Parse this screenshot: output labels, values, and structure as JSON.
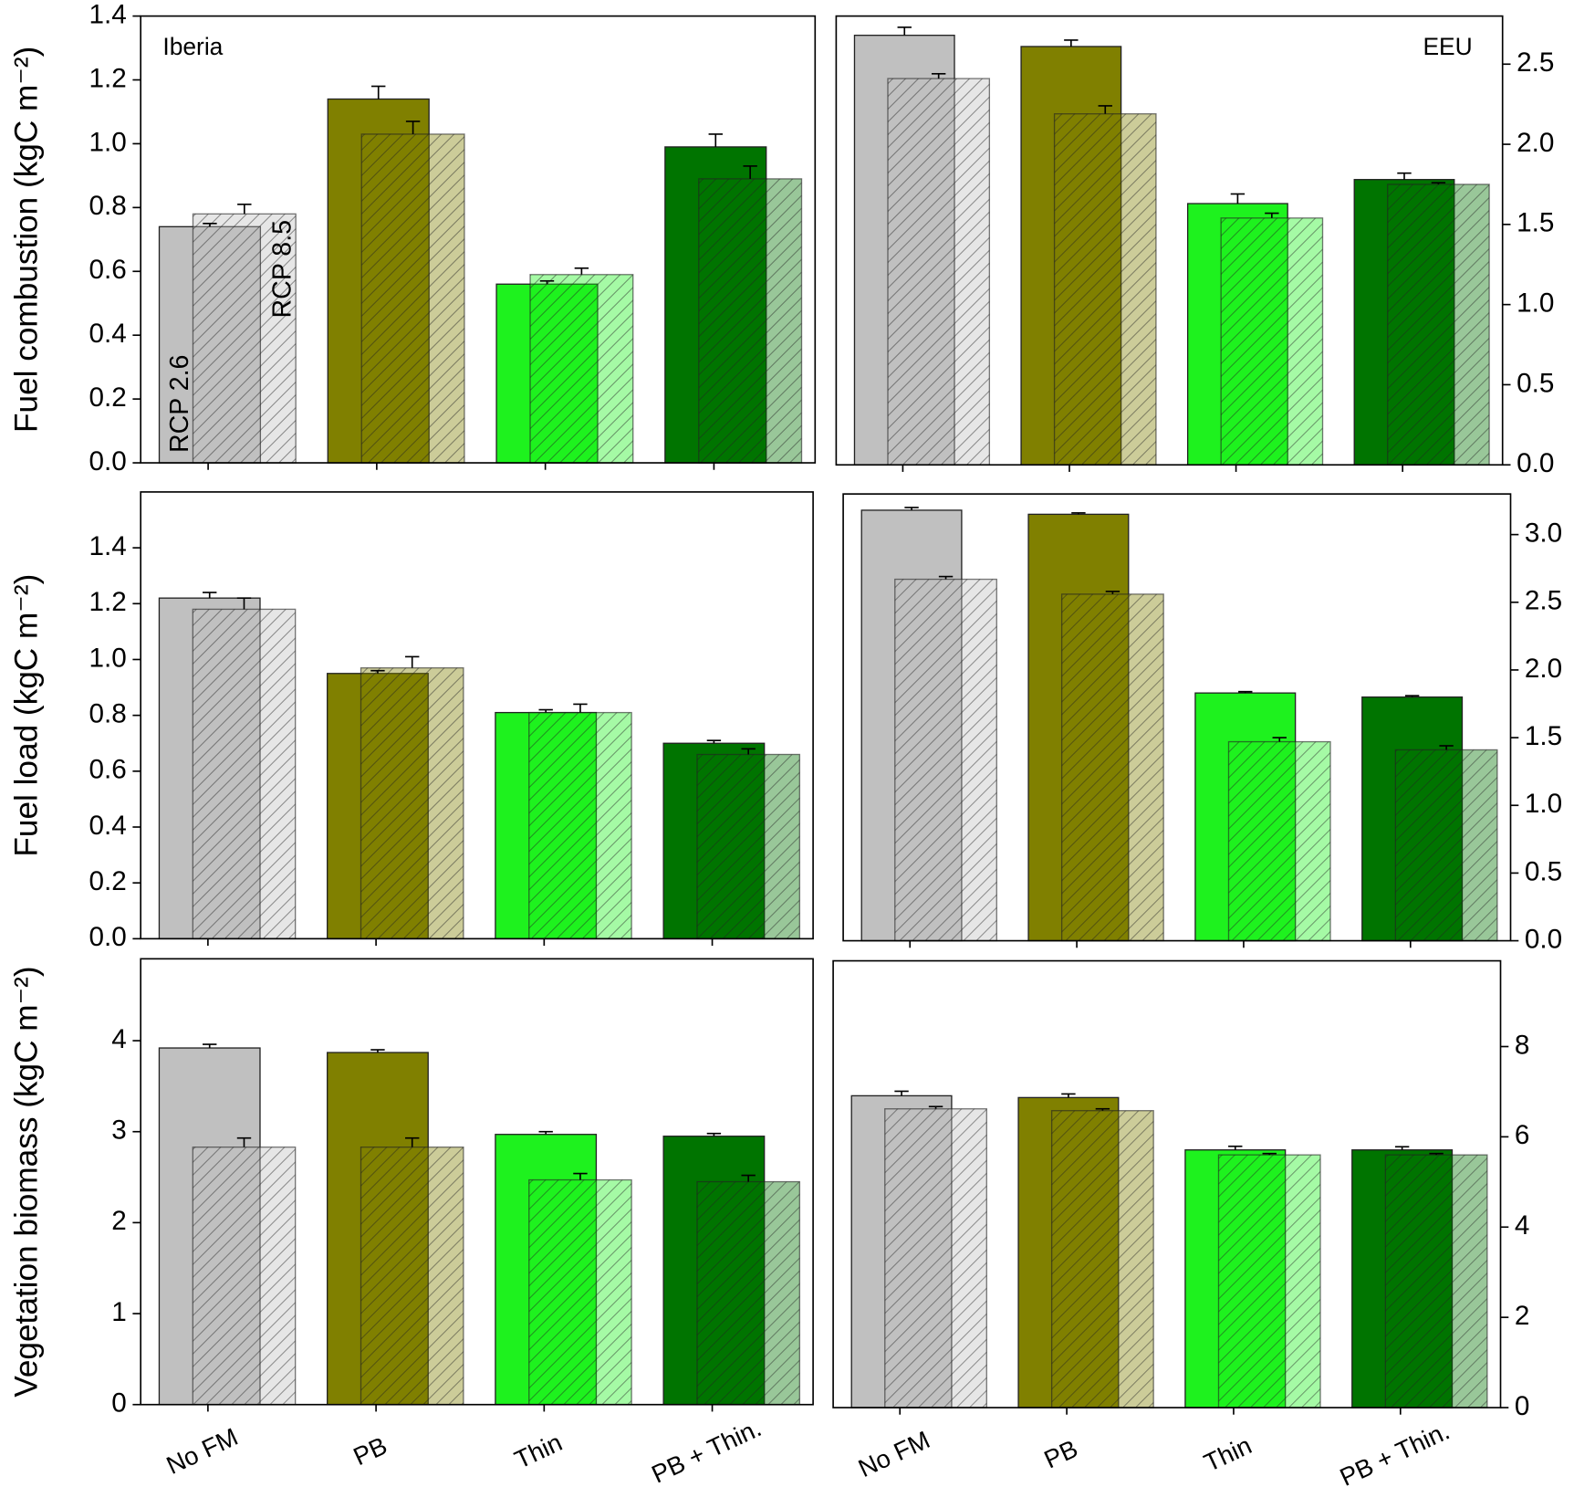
{
  "chart_data": [
    {
      "type": "bar",
      "region": "Iberia",
      "region_position": "left",
      "y_label": "Fuel combustion (kgC m⁻²)",
      "yaxis_position": "left",
      "categories": [
        null,
        null,
        null,
        null
      ],
      "colors": [
        "#c0c0c0",
        "#808000",
        "#1ef21e",
        "#007400"
      ],
      "series": [
        {
          "name": "RCP 2.6",
          "values": [
            0.74,
            1.14,
            0.56,
            0.99
          ],
          "errors": [
            0.01,
            0.04,
            0.01,
            0.04
          ]
        },
        {
          "name": "RCP 8.5",
          "values": [
            0.78,
            1.03,
            0.59,
            0.89
          ],
          "errors": [
            0.03,
            0.04,
            0.02,
            0.04
          ]
        }
      ],
      "ylim": [
        0,
        1.4
      ],
      "yticks": [
        {
          "value": 0,
          "label": "0.0"
        },
        0.2,
        0.4,
        0.6,
        0.8,
        {
          "value": 1,
          "label": "1.0"
        },
        1.2,
        1.4
      ]
    },
    {
      "type": "bar",
      "region": "EEU",
      "region_position": "right",
      "yaxis_position": "right",
      "categories": [
        null,
        null,
        null,
        null
      ],
      "colors": [
        "#c0c0c0",
        "#808000",
        "#1ef21e",
        "#007400"
      ],
      "series": [
        {
          "values": [
            2.68,
            2.61,
            1.63,
            1.78
          ],
          "errors": [
            0.05,
            0.04,
            0.06,
            0.04
          ]
        },
        {
          "values": [
            2.41,
            2.19,
            1.54,
            1.75
          ],
          "errors": [
            0.03,
            0.05,
            0.03,
            0.01
          ]
        }
      ],
      "ylim": [
        0,
        2.8
      ],
      "yticks": [
        {
          "value": 0,
          "label": "0.0"
        },
        0.5,
        {
          "value": 1,
          "label": "1.0"
        },
        1.5,
        {
          "value": 2,
          "label": "2.0"
        },
        2.5
      ]
    },
    {
      "type": "bar",
      "y_label": "Fuel load (kgC m⁻²)",
      "yaxis_position": "left",
      "categories": [
        null,
        null,
        null,
        null
      ],
      "colors": [
        "#c0c0c0",
        "#808000",
        "#1ef21e",
        "#007400"
      ],
      "series": [
        {
          "values": [
            1.22,
            0.95,
            0.81,
            0.7
          ],
          "errors": [
            0.02,
            0.01,
            0.01,
            0.01
          ]
        },
        {
          "values": [
            1.18,
            0.97,
            0.81,
            0.66
          ],
          "errors": [
            0.04,
            0.04,
            0.03,
            0.02
          ]
        }
      ],
      "ylim": [
        0,
        1.6
      ],
      "yticks": [
        {
          "value": 0,
          "label": "0.0"
        },
        0.2,
        0.4,
        0.6,
        0.8,
        {
          "value": 1,
          "label": "1.0"
        },
        1.2,
        1.4
      ]
    },
    {
      "type": "bar",
      "yaxis_position": "right",
      "categories": [
        null,
        null,
        null,
        null
      ],
      "colors": [
        "#c0c0c0",
        "#808000",
        "#1ef21e",
        "#007400"
      ],
      "series": [
        {
          "values": [
            3.18,
            3.15,
            1.83,
            1.8
          ],
          "errors": [
            0.02,
            0.01,
            0.01,
            0.01
          ]
        },
        {
          "values": [
            2.67,
            2.56,
            1.47,
            1.41
          ],
          "errors": [
            0.02,
            0.02,
            0.03,
            0.03
          ]
        }
      ],
      "ylim": [
        0,
        3.3
      ],
      "yticks": [
        {
          "value": 0,
          "label": "0.0"
        },
        0.5,
        {
          "value": 1,
          "label": "1.0"
        },
        1.5,
        {
          "value": 2,
          "label": "2.0"
        },
        2.5,
        {
          "value": 3,
          "label": "3.0"
        }
      ]
    },
    {
      "type": "bar",
      "y_label": "Vegetation biomass (kgC m⁻²)",
      "yaxis_position": "left",
      "categories": [
        "No FM",
        "PB",
        "Thin",
        "PB + Thin."
      ],
      "colors": [
        "#c0c0c0",
        "#808000",
        "#1ef21e",
        "#007400"
      ],
      "series": [
        {
          "values": [
            3.92,
            3.87,
            2.97,
            2.95
          ],
          "errors": [
            0.04,
            0.03,
            0.03,
            0.03
          ]
        },
        {
          "values": [
            2.83,
            2.83,
            2.47,
            2.45
          ],
          "errors": [
            0.1,
            0.1,
            0.07,
            0.07
          ]
        }
      ],
      "ylim": [
        0,
        4.9
      ],
      "yticks": [
        0,
        1,
        2,
        3,
        4
      ]
    },
    {
      "type": "bar",
      "yaxis_position": "right",
      "categories": [
        "No FM",
        "PB",
        "Thin",
        "PB + Thin."
      ],
      "colors": [
        "#c0c0c0",
        "#808000",
        "#1ef21e",
        "#007400"
      ],
      "series": [
        {
          "values": [
            6.91,
            6.87,
            5.71,
            5.71
          ],
          "errors": [
            0.1,
            0.08,
            0.08,
            0.07
          ]
        },
        {
          "values": [
            6.62,
            6.58,
            5.6,
            5.6
          ],
          "errors": [
            0.05,
            0.04,
            0.03,
            0.03
          ]
        }
      ],
      "ylim": [
        0,
        9.9
      ],
      "yticks": [
        0,
        2,
        4,
        6,
        8
      ]
    }
  ]
}
